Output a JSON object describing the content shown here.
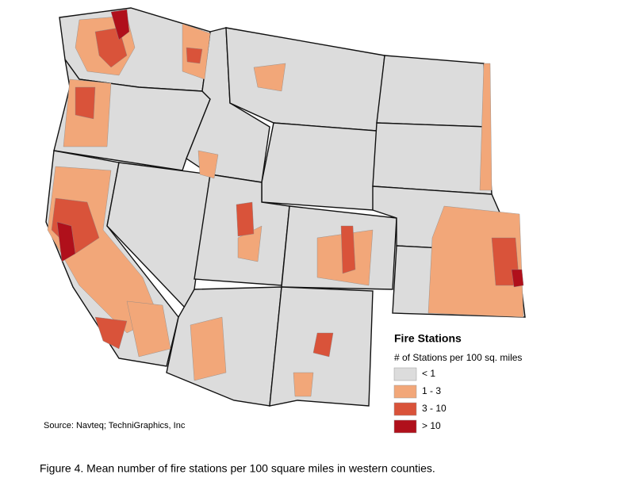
{
  "legend": {
    "title": "Fire Stations",
    "subtitle": "# of Stations per 100 sq. miles",
    "items": [
      {
        "label": "< 1",
        "color": "#dcdcdc"
      },
      {
        "label": "1 - 3",
        "color": "#f2a779"
      },
      {
        "label": "3 - 10",
        "color": "#d9533a"
      },
      {
        "label": "> 10",
        "color": "#b0101b"
      }
    ]
  },
  "source": "Source: Navteq; TechniGraphics, Inc",
  "caption": "Figure 4. Mean number of fire stations per 100 square miles in western counties."
}
